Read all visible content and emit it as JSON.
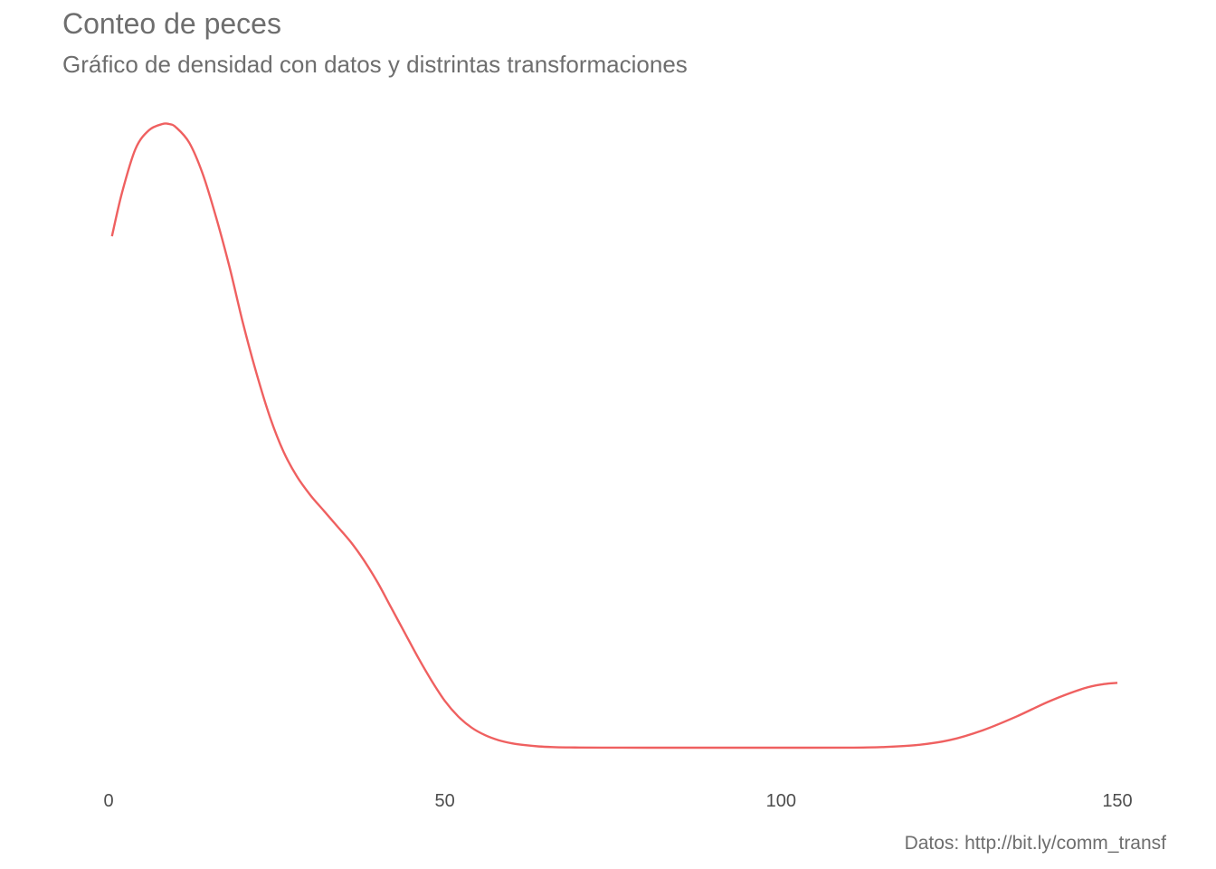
{
  "chart_data": {
    "type": "line",
    "title": "Conteo de peces",
    "subtitle": "Gráfico de densidad con datos y distrintas transformaciones",
    "caption": "Datos: http://bit.ly/comm_transf",
    "xlabel": "",
    "ylabel": "",
    "xlim": [
      0,
      150
    ],
    "x_ticks": [
      "0",
      "50",
      "100",
      "150"
    ],
    "x_tick_values": [
      0,
      50,
      100,
      150
    ],
    "y_ticks_shown": false,
    "grid": false,
    "legend": "none",
    "series": [
      {
        "color": "#ef6060",
        "x": [
          0.5,
          2,
          4,
          6,
          8,
          9,
          10,
          12,
          14,
          16,
          18,
          20,
          22,
          24,
          26,
          28,
          30,
          32,
          34,
          36,
          38,
          40,
          42,
          44,
          46,
          48,
          50,
          52,
          54,
          56,
          58,
          60,
          62,
          64,
          66,
          68,
          70,
          75,
          80,
          90,
          100,
          110,
          115,
          120,
          125,
          130,
          135,
          140,
          145,
          148,
          150
        ],
        "y": [
          0.82,
          0.89,
          0.96,
          0.99,
          1.0,
          1.0,
          0.995,
          0.97,
          0.92,
          0.85,
          0.77,
          0.68,
          0.6,
          0.53,
          0.475,
          0.435,
          0.405,
          0.38,
          0.355,
          0.33,
          0.3,
          0.265,
          0.225,
          0.185,
          0.145,
          0.108,
          0.075,
          0.05,
          0.032,
          0.02,
          0.012,
          0.007,
          0.004,
          0.002,
          0.001,
          0.0005,
          0.0003,
          0.0001,
          0.0,
          0.0,
          0.0,
          0.0001,
          0.001,
          0.004,
          0.012,
          0.028,
          0.05,
          0.075,
          0.095,
          0.102,
          0.104
        ]
      }
    ]
  }
}
